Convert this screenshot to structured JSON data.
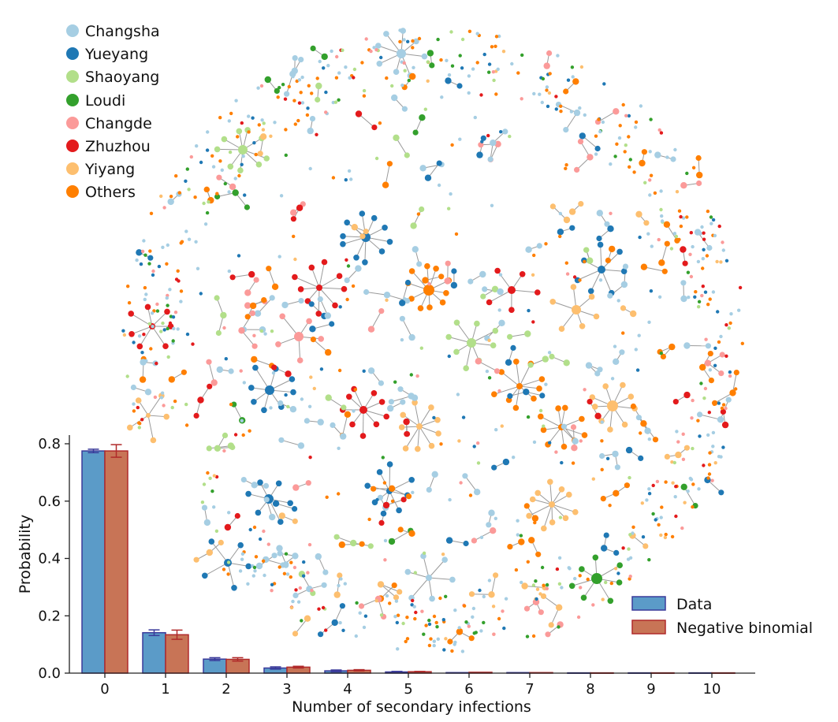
{
  "network_legend": {
    "items": [
      {
        "label": "Changsha",
        "color": "#a6cee3"
      },
      {
        "label": "Yueyang",
        "color": "#1f78b4"
      },
      {
        "label": "Shaoyang",
        "color": "#b2df8a"
      },
      {
        "label": "Loudi",
        "color": "#33a02c"
      },
      {
        "label": "Changde",
        "color": "#fb9a99"
      },
      {
        "label": "Zhuzhou",
        "color": "#e31a1c"
      },
      {
        "label": "Yiyang",
        "color": "#fdbf6f"
      },
      {
        "label": "Others",
        "color": "#ff7f00"
      }
    ]
  },
  "chart_data": {
    "type": "bar",
    "categories": [
      "0",
      "1",
      "2",
      "3",
      "4",
      "5",
      "6",
      "7",
      "8",
      "9",
      "10"
    ],
    "series": [
      {
        "name": "Data",
        "color": "#5b9bc8",
        "edge": "#3a3a9a",
        "values": [
          0.775,
          0.141,
          0.049,
          0.018,
          0.008,
          0.004,
          0.002,
          0.002,
          0.001,
          0.001,
          0.001
        ],
        "errors": [
          0.006,
          0.01,
          0.005,
          0.004,
          0.003,
          0.002,
          0,
          0,
          0,
          0,
          0
        ]
      },
      {
        "name": "Negative binomial",
        "color": "#c87456",
        "edge": "#b02a2a",
        "values": [
          0.775,
          0.134,
          0.048,
          0.021,
          0.01,
          0.005,
          0.003,
          0.002,
          0.001,
          0.001,
          0.001
        ],
        "errors": [
          0.022,
          0.016,
          0.006,
          0.003,
          0.002,
          0.001,
          0,
          0,
          0,
          0,
          0
        ]
      }
    ],
    "yticks": [
      "0.0",
      "0.2",
      "0.4",
      "0.6",
      "0.8"
    ],
    "ylim": [
      0,
      0.82
    ],
    "xlabel": "Number of secondary infections",
    "ylabel": "Probability",
    "legend_position": "bottom-right"
  }
}
